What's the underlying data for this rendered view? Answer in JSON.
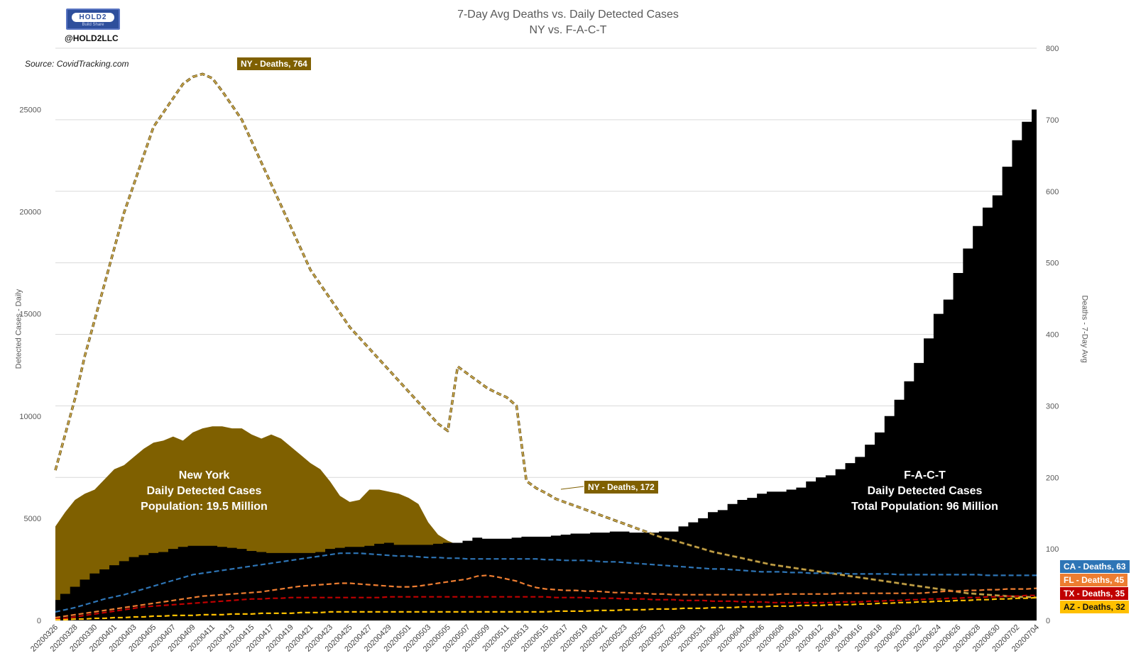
{
  "header": {
    "title_line1": "7-Day Avg Deaths vs. Daily Detected Cases",
    "title_line2": "NY vs. F-A-C-T",
    "logo_text": "HOLD2",
    "logo_tagline": "Build Share",
    "handle": "@HOLD2LLC",
    "source": "Source: CovidTracking.com"
  },
  "colors": {
    "ny": "#7f6000",
    "fact": "#000000",
    "ny_deaths": "#c9a64b",
    "ca": "#2e75b6",
    "fl": "#ed7d31",
    "tx": "#c00000",
    "az": "#ffc000"
  },
  "annotations": {
    "ny_area_label": [
      "New York",
      "Daily Detected Cases",
      "Population: 19.5 Million"
    ],
    "fact_area_label": [
      "F-A-C-T",
      "Daily Detected Cases",
      "Total Population: 96 Million"
    ],
    "ny_peak": "NY - Deaths, 764",
    "ny_end": "NY - Deaths, 172",
    "ca_end": "CA - Deaths, 63",
    "fl_end": "FL - Deaths, 45",
    "tx_end": "TX - Deaths, 35",
    "az_end": "AZ - Deaths, 32"
  },
  "chart_data": {
    "type": "area",
    "title": "7-Day Avg Deaths vs. Daily Detected Cases",
    "subtitle": "NY vs. F-A-C-T",
    "ylabel": "Detected Cases - Daily",
    "y2label": "Deaths - 7-Day Avg",
    "ylim": [
      0,
      28000
    ],
    "y2lim": [
      0,
      800
    ],
    "yticks": [
      0,
      5000,
      10000,
      15000,
      20000,
      25000
    ],
    "y2ticks": [
      0,
      100,
      200,
      300,
      400,
      500,
      600,
      700,
      800
    ],
    "dates": [
      "20200326",
      "20200327",
      "20200328",
      "20200329",
      "20200330",
      "20200331",
      "20200401",
      "20200402",
      "20200403",
      "20200404",
      "20200405",
      "20200406",
      "20200407",
      "20200408",
      "20200409",
      "20200410",
      "20200411",
      "20200412",
      "20200413",
      "20200414",
      "20200415",
      "20200416",
      "20200417",
      "20200418",
      "20200419",
      "20200420",
      "20200421",
      "20200422",
      "20200423",
      "20200424",
      "20200425",
      "20200426",
      "20200427",
      "20200428",
      "20200429",
      "20200430",
      "20200501",
      "20200502",
      "20200503",
      "20200504",
      "20200505",
      "20200506",
      "20200507",
      "20200508",
      "20200509",
      "20200510",
      "20200511",
      "20200512",
      "20200513",
      "20200514",
      "20200515",
      "20200516",
      "20200517",
      "20200518",
      "20200519",
      "20200520",
      "20200521",
      "20200522",
      "20200523",
      "20200524",
      "20200525",
      "20200526",
      "20200527",
      "20200528",
      "20200529",
      "20200530",
      "20200531",
      "20200601",
      "20200602",
      "20200603",
      "20200604",
      "20200605",
      "20200606",
      "20200607",
      "20200608",
      "20200609",
      "20200610",
      "20200611",
      "20200612",
      "20200613",
      "20200614",
      "20200615",
      "20200616",
      "20200617",
      "20200618",
      "20200619",
      "20200620",
      "20200621",
      "20200622",
      "20200623",
      "20200624",
      "20200625",
      "20200626",
      "20200627",
      "20200628",
      "20200629",
      "20200630",
      "20200701",
      "20200702",
      "20200703",
      "20200704"
    ],
    "tick_labels": [
      "20200326",
      "20200328",
      "20200330",
      "20200401",
      "20200403",
      "20200405",
      "20200407",
      "20200409",
      "20200411",
      "20200413",
      "20200415",
      "20200417",
      "20200419",
      "20200421",
      "20200423",
      "20200425",
      "20200427",
      "20200429",
      "20200501",
      "20200503",
      "20200505",
      "20200507",
      "20200509",
      "20200511",
      "20200513",
      "20200515",
      "20200517",
      "20200519",
      "20200521",
      "20200523",
      "20200525",
      "20200527",
      "20200529",
      "20200531",
      "20200602",
      "20200604",
      "20200606",
      "20200608",
      "20200610",
      "20200612",
      "20200614",
      "20200616",
      "20200618",
      "20200620",
      "20200622",
      "20200624",
      "20200626",
      "20200628",
      "20200630",
      "20200702",
      "20200704"
    ],
    "cases_series": [
      {
        "name": "New York - Daily Detected Cases",
        "axis": "left",
        "values": [
          4600,
          5300,
          5900,
          6200,
          6400,
          6900,
          7400,
          7600,
          8000,
          8400,
          8700,
          8800,
          9000,
          8800,
          9200,
          9400,
          9500,
          9500,
          9400,
          9400,
          9100,
          8900,
          9100,
          8900,
          8500,
          8100,
          7700,
          7400,
          6800,
          6100,
          5800,
          5900,
          6400,
          6400,
          6300,
          6200,
          6000,
          5700,
          4800,
          4200,
          3900,
          3700,
          3750,
          3800,
          3650,
          3600,
          3650,
          3650,
          3700,
          3700,
          3750,
          3750,
          3800,
          3800,
          3850,
          3850,
          3900,
          3900,
          3900,
          3950,
          3950,
          4000,
          4000,
          4050,
          4100,
          4100,
          4150,
          4200,
          4250,
          4300,
          4300,
          4300,
          4300,
          4300,
          4300,
          4300,
          4300,
          4300,
          4300,
          4300,
          4300,
          4300,
          4300,
          4300,
          4300,
          4300,
          4300,
          4300,
          4300,
          4300,
          4300,
          4300,
          4300,
          4300,
          4300,
          4300,
          4300,
          4300,
          4300,
          4300,
          4300
        ]
      },
      {
        "name": "F-A-C-T - Daily Detected Cases",
        "axis": "left",
        "values": [
          1000,
          1300,
          1650,
          2000,
          2300,
          2500,
          2700,
          2900,
          3100,
          3200,
          3300,
          3350,
          3500,
          3600,
          3650,
          3650,
          3650,
          3600,
          3550,
          3500,
          3400,
          3350,
          3300,
          3300,
          3300,
          3300,
          3300,
          3350,
          3500,
          3550,
          3600,
          3600,
          3650,
          3750,
          3800,
          3700,
          3700,
          3700,
          3700,
          3750,
          3800,
          3800,
          3900,
          4050,
          4000,
          4000,
          4000,
          4050,
          4100,
          4100,
          4100,
          4150,
          4200,
          4250,
          4250,
          4300,
          4300,
          4350,
          4350,
          4300,
          4300,
          4300,
          4350,
          4350,
          4600,
          4800,
          5000,
          5300,
          5400,
          5700,
          5900,
          6000,
          6200,
          6300,
          6300,
          6400,
          6500,
          6800,
          7000,
          7100,
          7400,
          7700,
          8000,
          8600,
          9200,
          10000,
          10800,
          11700,
          12600,
          13800,
          15000,
          15700,
          17000,
          18200,
          19300,
          20200,
          20800,
          22200,
          23500,
          24400,
          25000
        ]
      }
    ],
    "deaths_series": [
      {
        "name": "NY - Deaths",
        "axis": "right",
        "values": [
          210,
          260,
          310,
          370,
          420,
          470,
          520,
          570,
          610,
          650,
          690,
          710,
          730,
          750,
          760,
          764,
          758,
          740,
          720,
          700,
          670,
          640,
          610,
          580,
          550,
          520,
          490,
          470,
          450,
          430,
          410,
          395,
          380,
          365,
          350,
          335,
          320,
          305,
          290,
          275,
          265,
          355,
          345,
          335,
          325,
          318,
          312,
          300,
          195,
          185,
          178,
          170,
          165,
          160,
          155,
          150,
          145,
          140,
          135,
          130,
          125,
          120,
          115,
          112,
          108,
          104,
          100,
          96,
          93,
          90,
          87,
          84,
          81,
          78,
          76,
          74,
          72,
          70,
          68,
          66,
          64,
          62,
          60,
          58,
          56,
          54,
          52,
          50,
          48,
          46,
          44,
          42,
          40,
          38,
          37,
          36,
          35,
          34,
          33,
          33,
          32
        ],
        "peak_label": "NY - Deaths, 764",
        "late_label": "NY - Deaths, 172"
      },
      {
        "name": "CA - Deaths",
        "axis": "right",
        "values": [
          12,
          15,
          18,
          22,
          26,
          30,
          33,
          36,
          40,
          44,
          48,
          52,
          56,
          60,
          64,
          66,
          68,
          70,
          72,
          74,
          76,
          78,
          80,
          82,
          84,
          86,
          88,
          90,
          92,
          94,
          94,
          94,
          93,
          92,
          91,
          90,
          90,
          89,
          88,
          88,
          87,
          87,
          86,
          86,
          86,
          86,
          86,
          86,
          86,
          86,
          85,
          85,
          84,
          84,
          84,
          83,
          82,
          82,
          81,
          80,
          79,
          78,
          77,
          76,
          75,
          74,
          73,
          72,
          72,
          71,
          70,
          69,
          68,
          68,
          68,
          67,
          67,
          66,
          66,
          66,
          66,
          65,
          65,
          65,
          65,
          65,
          64,
          64,
          64,
          64,
          64,
          64,
          64,
          64,
          64,
          63,
          63,
          63,
          63,
          63,
          63
        ],
        "end_label": "CA - Deaths, 63"
      },
      {
        "name": "FL - Deaths",
        "axis": "right",
        "values": [
          4,
          6,
          8,
          10,
          12,
          14,
          16,
          18,
          20,
          22,
          24,
          26,
          28,
          30,
          32,
          34,
          35,
          36,
          37,
          38,
          39,
          40,
          42,
          44,
          46,
          48,
          49,
          50,
          51,
          52,
          52,
          51,
          50,
          49,
          48,
          47,
          47,
          48,
          50,
          52,
          54,
          56,
          58,
          62,
          63,
          61,
          58,
          55,
          50,
          46,
          44,
          43,
          42,
          42,
          41,
          41,
          40,
          39,
          39,
          38,
          38,
          37,
          37,
          36,
          36,
          36,
          36,
          36,
          36,
          36,
          36,
          36,
          36,
          36,
          37,
          37,
          37,
          37,
          37,
          37,
          38,
          38,
          38,
          38,
          38,
          38,
          38,
          38,
          38,
          39,
          40,
          41,
          41,
          42,
          42,
          43,
          43,
          44,
          44,
          44,
          45
        ],
        "end_label": "FL - Deaths, 45"
      },
      {
        "name": "TX - Deaths",
        "axis": "right",
        "values": [
          2,
          3,
          5,
          7,
          9,
          11,
          13,
          15,
          17,
          19,
          20,
          21,
          22,
          23,
          24,
          25,
          26,
          27,
          28,
          29,
          30,
          30,
          31,
          31,
          32,
          32,
          32,
          32,
          32,
          32,
          32,
          32,
          32,
          32,
          33,
          33,
          33,
          33,
          33,
          33,
          33,
          33,
          33,
          33,
          33,
          33,
          33,
          33,
          33,
          33,
          33,
          32,
          32,
          32,
          32,
          31,
          31,
          31,
          30,
          30,
          30,
          29,
          29,
          29,
          28,
          28,
          28,
          27,
          27,
          27,
          26,
          26,
          26,
          25,
          25,
          25,
          25,
          25,
          25,
          25,
          26,
          26,
          26,
          27,
          27,
          28,
          28,
          29,
          29,
          30,
          30,
          31,
          31,
          32,
          32,
          33,
          33,
          34,
          34,
          35,
          35
        ],
        "end_label": "TX - Deaths, 35"
      },
      {
        "name": "AZ - Deaths",
        "axis": "right",
        "values": [
          1,
          1,
          2,
          2,
          3,
          3,
          4,
          4,
          5,
          5,
          6,
          6,
          7,
          7,
          7,
          8,
          8,
          8,
          9,
          9,
          9,
          10,
          10,
          10,
          10,
          11,
          11,
          11,
          12,
          12,
          12,
          12,
          12,
          12,
          12,
          12,
          12,
          12,
          12,
          12,
          12,
          12,
          12,
          12,
          12,
          12,
          12,
          12,
          12,
          12,
          12,
          13,
          13,
          13,
          13,
          14,
          14,
          14,
          15,
          15,
          15,
          16,
          16,
          16,
          17,
          17,
          17,
          18,
          18,
          18,
          19,
          19,
          19,
          20,
          20,
          20,
          21,
          21,
          21,
          22,
          22,
          22,
          23,
          23,
          24,
          24,
          25,
          25,
          26,
          26,
          27,
          27,
          28,
          28,
          29,
          29,
          30,
          30,
          31,
          31,
          32
        ],
        "end_label": "AZ - Deaths, 32"
      }
    ]
  }
}
